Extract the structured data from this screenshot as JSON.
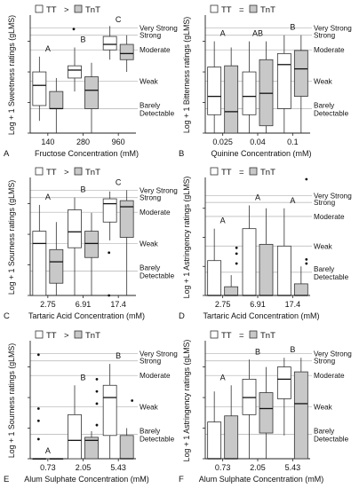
{
  "chart_data": [
    {
      "type": "box",
      "panel_letter": "A",
      "xlabel": "Fructose Concentration (mM)",
      "ylabel": "Log + 1 Sweetness ratings (gLMS)",
      "legend": {
        "items": [
          "TT",
          "TnT"
        ],
        "relation": ">"
      },
      "categories": [
        "140",
        "280",
        "960"
      ],
      "ylim": [
        0,
        1.9
      ],
      "reference_lines": [
        {
          "label": "Very Strong",
          "value": 1.72
        },
        {
          "label": "Strong",
          "value": 1.6
        },
        {
          "label": "Moderate",
          "value": 1.36
        },
        {
          "label": "Weak",
          "value": 0.85
        },
        {
          "label": "Barely Detectable",
          "value": 0.4
        }
      ],
      "group_letters": [
        "A",
        "B",
        "C"
      ],
      "series": [
        {
          "name": "TT",
          "color": "#ffffff",
          "boxes": [
            {
              "min": 0.2,
              "q1": 0.45,
              "median": 0.78,
              "q3": 1.0,
              "max": 1.25,
              "outliers": []
            },
            {
              "min": 0.68,
              "q1": 0.9,
              "median": 1.03,
              "q3": 1.1,
              "max": 1.4,
              "outliers": [
                1.7
              ]
            },
            {
              "min": 1.2,
              "q1": 1.36,
              "median": 1.45,
              "q3": 1.58,
              "max": 1.75,
              "outliers": []
            }
          ]
        },
        {
          "name": "TnT",
          "color": "#c8c8c8",
          "boxes": [
            {
              "min": 0.0,
              "q1": 0.4,
              "median": 0.4,
              "q3": 0.68,
              "max": 0.9,
              "outliers": []
            },
            {
              "min": 0.0,
              "q1": 0.4,
              "median": 0.7,
              "q3": 0.92,
              "max": 1.15,
              "outliers": []
            },
            {
              "min": 1.0,
              "q1": 1.2,
              "median": 1.3,
              "q3": 1.45,
              "max": 1.6,
              "outliers": []
            }
          ]
        }
      ]
    },
    {
      "type": "box",
      "panel_letter": "B",
      "xlabel": "Quinine Concentration (mM)",
      "ylabel": "Log + 1 Bitterness ratings (gLMS)",
      "legend": {
        "items": [
          "TT",
          "TnT"
        ],
        "relation": "="
      },
      "categories": [
        "0.025",
        "0.04",
        "0.1"
      ],
      "ylim": [
        0,
        1.9
      ],
      "reference_lines": [
        {
          "label": "Very Strong",
          "value": 1.72
        },
        {
          "label": "Strong",
          "value": 1.6
        },
        {
          "label": "Moderate",
          "value": 1.36
        },
        {
          "label": "Weak",
          "value": 0.85
        },
        {
          "label": "Barely Detectable",
          "value": 0.4
        }
      ],
      "group_letters": [
        "A",
        "AB",
        "B"
      ],
      "series": [
        {
          "name": "TT",
          "color": "#ffffff",
          "boxes": [
            {
              "min": 0.0,
              "q1": 0.3,
              "median": 0.6,
              "q3": 1.08,
              "max": 1.5,
              "outliers": []
            },
            {
              "min": 0.0,
              "q1": 0.3,
              "median": 0.6,
              "q3": 1.0,
              "max": 1.5,
              "outliers": []
            },
            {
              "min": 0.0,
              "q1": 0.4,
              "median": 1.12,
              "q3": 1.3,
              "max": 1.6,
              "outliers": []
            }
          ]
        },
        {
          "name": "TnT",
          "color": "#c8c8c8",
          "boxes": [
            {
              "min": 0.0,
              "q1": 0.0,
              "median": 0.35,
              "q3": 1.1,
              "max": 1.4,
              "outliers": []
            },
            {
              "min": 0.0,
              "q1": 0.12,
              "median": 0.65,
              "q3": 1.2,
              "max": 1.5,
              "outliers": []
            },
            {
              "min": 0.0,
              "q1": 0.6,
              "median": 1.05,
              "q3": 1.35,
              "max": 1.6,
              "outliers": []
            }
          ]
        }
      ]
    },
    {
      "type": "box",
      "panel_letter": "C",
      "xlabel": "Tartaric Acid Concentration (mM)",
      "ylabel": "Log + 1 Sourness ratings (gLMS)",
      "legend": {
        "items": [
          "TT",
          "TnT"
        ],
        "relation": ">"
      },
      "categories": [
        "2.75",
        "6.91",
        "17.4"
      ],
      "ylim": [
        0,
        1.9
      ],
      "reference_lines": [
        {
          "label": "Very Strong",
          "value": 1.72
        },
        {
          "label": "Strong",
          "value": 1.6
        },
        {
          "label": "Moderate",
          "value": 1.36
        },
        {
          "label": "Weak",
          "value": 0.85
        },
        {
          "label": "Barely Detectable",
          "value": 0.4
        }
      ],
      "group_letters": [
        "A",
        "B",
        "C"
      ],
      "series": [
        {
          "name": "TT",
          "color": "#ffffff",
          "boxes": [
            {
              "min": 0.0,
              "q1": 0.0,
              "median": 0.85,
              "q3": 1.05,
              "max": 1.48,
              "outliers": []
            },
            {
              "min": 0.0,
              "q1": 0.78,
              "median": 1.04,
              "q3": 1.4,
              "max": 1.6,
              "outliers": []
            },
            {
              "min": 0.9,
              "q1": 1.2,
              "median": 1.5,
              "q3": 1.58,
              "max": 1.7,
              "outliers": [
                0.7,
                0.0
              ]
            }
          ]
        },
        {
          "name": "TnT",
          "color": "#c8c8c8",
          "boxes": [
            {
              "min": 0.0,
              "q1": 0.2,
              "median": 0.55,
              "q3": 0.75,
              "max": 1.2,
              "outliers": []
            },
            {
              "min": 0.0,
              "q1": 0.62,
              "median": 0.85,
              "q3": 1.05,
              "max": 1.35,
              "outliers": []
            },
            {
              "min": 0.0,
              "q1": 0.95,
              "median": 1.45,
              "q3": 1.55,
              "max": 1.72,
              "outliers": []
            }
          ]
        }
      ]
    },
    {
      "type": "box",
      "panel_letter": "D",
      "xlabel": "Tartaric Acid Concentration (mM)",
      "ylabel": "Log + 1 Astringency ratings (gLMS)",
      "legend": {
        "items": [
          "TT",
          "TnT"
        ],
        "relation": "="
      },
      "categories": [
        "2.75",
        "6.91",
        "17.4"
      ],
      "ylim": [
        0,
        2.0
      ],
      "reference_lines": [
        {
          "label": "Very Strong",
          "value": 1.72
        },
        {
          "label": "Strong",
          "value": 1.6
        },
        {
          "label": "Moderate",
          "value": 1.36
        },
        {
          "label": "Weak",
          "value": 0.85
        },
        {
          "label": "Barely Detectable",
          "value": 0.4
        }
      ],
      "group_letters": [
        "A",
        "A",
        "A"
      ],
      "series": [
        {
          "name": "TT",
          "color": "#ffffff",
          "boxes": [
            {
              "min": 0.0,
              "q1": 0.0,
              "median": 0.0,
              "q3": 0.6,
              "max": 1.15,
              "outliers": []
            },
            {
              "min": 0.0,
              "q1": 0.0,
              "median": 0.0,
              "q3": 1.15,
              "max": 1.55,
              "outliers": []
            },
            {
              "min": 0.0,
              "q1": 0.0,
              "median": 0.0,
              "q3": 0.85,
              "max": 1.5,
              "outliers": []
            }
          ]
        },
        {
          "name": "TnT",
          "color": "#c8c8c8",
          "boxes": [
            {
              "min": 0.0,
              "q1": 0.0,
              "median": 0.0,
              "q3": 0.15,
              "max": 0.35,
              "outliers": [
                0.82,
                0.72,
                0.55
              ]
            },
            {
              "min": 0.0,
              "q1": 0.0,
              "median": 0.0,
              "q3": 0.88,
              "max": 1.5,
              "outliers": []
            },
            {
              "min": 0.0,
              "q1": 0.0,
              "median": 0.0,
              "q3": 0.2,
              "max": 0.5,
              "outliers": [
                2.0,
                0.62,
                0.55
              ]
            }
          ]
        }
      ]
    },
    {
      "type": "box",
      "panel_letter": "E",
      "xlabel": "Alum Sulphate Concentration (mM)",
      "ylabel": "Log + 1 Sourness ratings (gLMS)",
      "legend": {
        "items": [
          "TT",
          "TnT"
        ],
        "relation": ">"
      },
      "categories": [
        "0.73",
        "2.05",
        "5.43"
      ],
      "ylim": [
        0,
        1.9
      ],
      "reference_lines": [
        {
          "label": "Very Strong",
          "value": 1.72
        },
        {
          "label": "Strong",
          "value": 1.6
        },
        {
          "label": "Moderate",
          "value": 1.36
        },
        {
          "label": "Weak",
          "value": 0.85
        },
        {
          "label": "Barely Detectable",
          "value": 0.4
        }
      ],
      "group_letters": [
        "A",
        "B",
        "B"
      ],
      "series": [
        {
          "name": "TT",
          "color": "#ffffff",
          "boxes": [
            {
              "min": 0.0,
              "q1": 0.0,
              "median": 0.0,
              "q3": 0.0,
              "max": 0.0,
              "outliers": [
                1.7,
                0.82,
                0.62,
                0.32
              ]
            },
            {
              "min": 0.0,
              "q1": 0.0,
              "median": 0.3,
              "q3": 0.72,
              "max": 1.2,
              "outliers": []
            },
            {
              "min": 0.0,
              "q1": 0.38,
              "median": 1.0,
              "q3": 1.2,
              "max": 1.55,
              "outliers": []
            }
          ]
        },
        {
          "name": "TnT",
          "color": "#c8c8c8",
          "boxes": [
            {
              "min": 0.0,
              "q1": 0.0,
              "median": 0.0,
              "q3": 0.0,
              "max": 0.0,
              "outliers": []
            },
            {
              "min": 0.0,
              "q1": 0.0,
              "median": 0.3,
              "q3": 0.35,
              "max": 0.45,
              "outliers": [
                1.3,
                1.1,
                0.9,
                0.55
              ]
            },
            {
              "min": 0.0,
              "q1": 0.0,
              "median": 0.0,
              "q3": 0.38,
              "max": 0.5,
              "outliers": [
                0.95
              ]
            }
          ]
        }
      ]
    },
    {
      "type": "box",
      "panel_letter": "F",
      "xlabel": "Alum Sulphate Concentration (mM)",
      "ylabel": "Log + 1 Astringency ratings (gLMS)",
      "legend": {
        "items": [
          "TT",
          "TnT"
        ],
        "relation": "="
      },
      "categories": [
        "0.73",
        "2.05",
        "5.43"
      ],
      "ylim": [
        0,
        1.9
      ],
      "reference_lines": [
        {
          "label": "Very Strong",
          "value": 1.72
        },
        {
          "label": "Strong",
          "value": 1.6
        },
        {
          "label": "Moderate",
          "value": 1.36
        },
        {
          "label": "Weak",
          "value": 0.85
        },
        {
          "label": "Barely Detectable",
          "value": 0.4
        }
      ],
      "group_letters": [
        "A",
        "B",
        "B"
      ],
      "series": [
        {
          "name": "TT",
          "color": "#ffffff",
          "boxes": [
            {
              "min": 0.0,
              "q1": 0.0,
              "median": 0.0,
              "q3": 0.6,
              "max": 1.1,
              "outliers": []
            },
            {
              "min": 0.0,
              "q1": 0.72,
              "median": 1.0,
              "q3": 1.3,
              "max": 1.62,
              "outliers": []
            },
            {
              "min": 0.38,
              "q1": 0.98,
              "median": 1.3,
              "q3": 1.5,
              "max": 1.65,
              "outliers": []
            }
          ]
        },
        {
          "name": "TnT",
          "color": "#c8c8c8",
          "boxes": [
            {
              "min": 0.0,
              "q1": 0.0,
              "median": 0.0,
              "q3": 0.7,
              "max": 1.2,
              "outliers": []
            },
            {
              "min": 0.0,
              "q1": 0.42,
              "median": 0.82,
              "q3": 1.08,
              "max": 1.5,
              "outliers": []
            },
            {
              "min": 0.0,
              "q1": 0.0,
              "median": 0.9,
              "q3": 1.42,
              "max": 1.65,
              "outliers": []
            }
          ]
        }
      ]
    }
  ]
}
